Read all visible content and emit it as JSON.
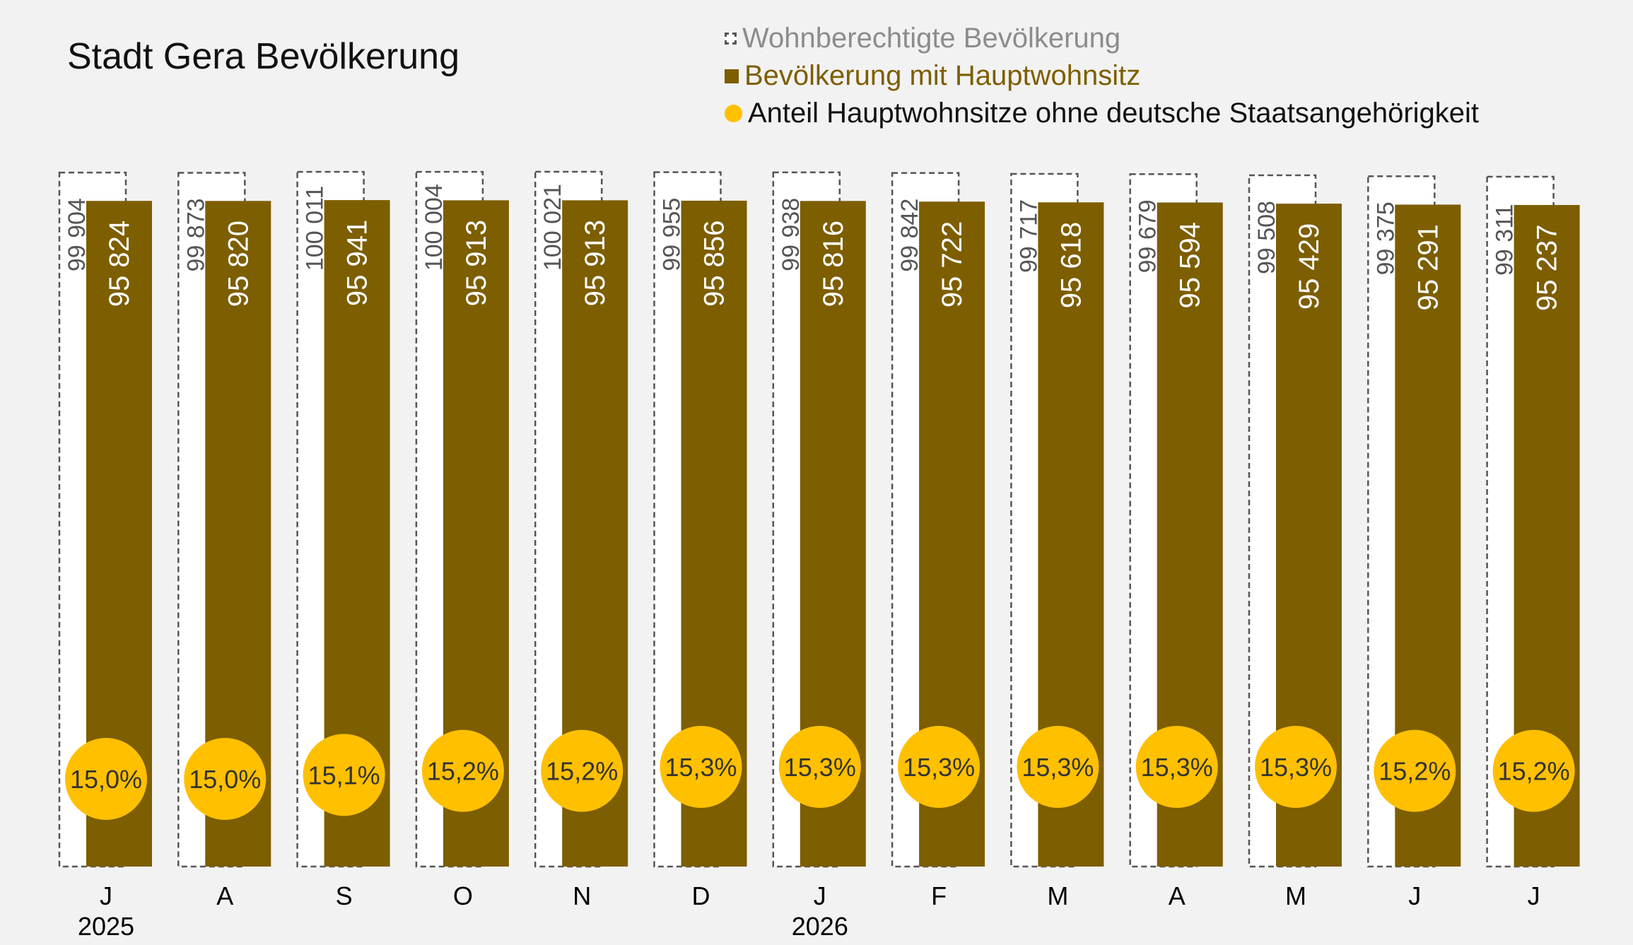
{
  "colors": {
    "background": "#f2f2f2",
    "bar_main": "#7d5e00",
    "bar_outline": "#555555",
    "bar_outline_fill": "#ffffff",
    "circle": "#ffc000",
    "legend_text_1": "#8c8c8c",
    "legend_text_2": "#7d5e00",
    "legend_text_3": "#111111"
  },
  "chart_data": {
    "type": "bar",
    "title": "Stadt Gera Bevölkerung",
    "categories": [
      "J",
      "A",
      "S",
      "O",
      "N",
      "D",
      "J",
      "F",
      "M",
      "A",
      "M",
      "J",
      "J"
    ],
    "year_labels": [
      {
        "index": 0,
        "label": "2025"
      },
      {
        "index": 6,
        "label": "2026"
      }
    ],
    "series": [
      {
        "name": "Wohnberechtigte Bevölkerung",
        "values": [
          99904,
          99873,
          100011,
          100004,
          100021,
          99955,
          99938,
          99842,
          99717,
          99679,
          99508,
          99375,
          99311
        ],
        "labels": [
          "99 904",
          "99 873",
          "100 011",
          "100 004",
          "100 021",
          "99 955",
          "99 938",
          "99 842",
          "99 717",
          "99 679",
          "99 508",
          "99 375",
          "99 311"
        ]
      },
      {
        "name": "Bevölkerung mit Hauptwohnsitz",
        "values": [
          95824,
          95820,
          95941,
          95913,
          95913,
          95856,
          95816,
          95722,
          95618,
          95594,
          95429,
          95291,
          95237
        ],
        "labels": [
          "95 824",
          "95 820",
          "95 941",
          "95 913",
          "95 913",
          "95 856",
          "95 816",
          "95 722",
          "95 618",
          "95 594",
          "95 429",
          "95 291",
          "95 237"
        ]
      },
      {
        "name": "Anteil Hauptwohnsitze ohne deutsche Staatsangehörigkeit",
        "values": [
          15.0,
          15.0,
          15.1,
          15.2,
          15.2,
          15.3,
          15.3,
          15.3,
          15.3,
          15.3,
          15.3,
          15.2,
          15.2
        ],
        "labels": [
          "15,0%",
          "15,0%",
          "15,1%",
          "15,2%",
          "15,2%",
          "15,3%",
          "15,3%",
          "15,3%",
          "15,3%",
          "15,3%",
          "15,3%",
          "15,2%",
          "15,2%"
        ]
      }
    ],
    "ylim": [
      0,
      100021
    ],
    "grid": false,
    "legend_position": "top-right"
  }
}
